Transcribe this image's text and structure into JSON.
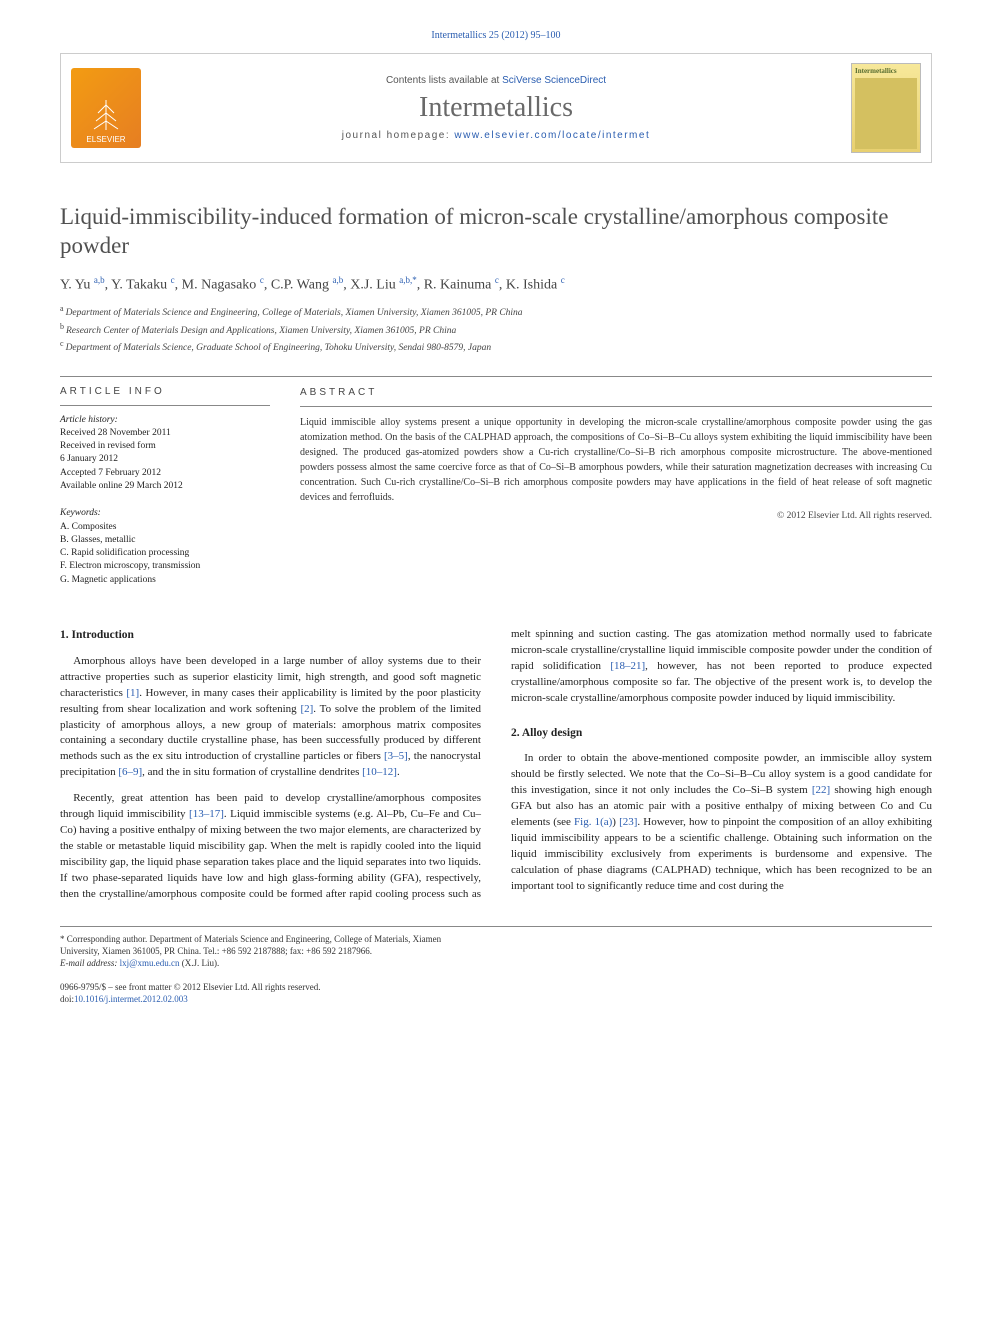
{
  "header": {
    "reference": "Intermetallics 25 (2012) 95–100",
    "contents_prefix": "Contents lists available at ",
    "contents_link": "SciVerse ScienceDirect",
    "journal_title": "Intermetallics",
    "homepage_prefix": "journal homepage: ",
    "homepage_url": "www.elsevier.com/locate/intermet",
    "publisher_logo": "ELSEVIER",
    "cover_label": "Intermetallics"
  },
  "article": {
    "title": "Liquid-immiscibility-induced formation of micron-scale crystalline/amorphous composite powder",
    "authors_html": "Y. Yu <sup>a,b</sup>, Y. Takaku <sup>c</sup>, M. Nagasako <sup>c</sup>, C.P. Wang <sup>a,b</sup>, X.J. Liu <sup>a,b,*</sup>, R. Kainuma <sup>c</sup>, K. Ishida <sup>c</sup>",
    "affiliations": [
      {
        "sup": "a",
        "text": "Department of Materials Science and Engineering, College of Materials, Xiamen University, Xiamen 361005, PR China"
      },
      {
        "sup": "b",
        "text": "Research Center of Materials Design and Applications, Xiamen University, Xiamen 361005, PR China"
      },
      {
        "sup": "c",
        "text": "Department of Materials Science, Graduate School of Engineering, Tohoku University, Sendai 980-8579, Japan"
      }
    ]
  },
  "meta": {
    "info_head": "ARTICLE INFO",
    "abstract_head": "ABSTRACT",
    "history_label": "Article history:",
    "history": [
      "Received 28 November 2011",
      "Received in revised form",
      "6 January 2012",
      "Accepted 7 February 2012",
      "Available online 29 March 2012"
    ],
    "keywords_label": "Keywords:",
    "keywords": [
      "A. Composites",
      "B. Glasses, metallic",
      "C. Rapid solidification processing",
      "F. Electron microscopy, transmission",
      "G. Magnetic applications"
    ],
    "abstract": "Liquid immiscible alloy systems present a unique opportunity in developing the micron-scale crystalline/amorphous composite powder using the gas atomization method. On the basis of the CALPHAD approach, the compositions of Co–Si–B–Cu alloys system exhibiting the liquid immiscibility have been designed. The produced gas-atomized powders show a Cu-rich crystalline/Co–Si–B rich amorphous composite microstructure. The above-mentioned powders possess almost the same coercive force as that of Co–Si–B amorphous powders, while their saturation magnetization decreases with increasing Cu concentration. Such Cu-rich crystalline/Co–Si–B rich amorphous composite powders may have applications in the field of heat release of soft magnetic devices and ferrofluids.",
    "copyright": "© 2012 Elsevier Ltd. All rights reserved."
  },
  "body": {
    "sect1_title": "1. Introduction",
    "sect1_p1": "Amorphous alloys have been developed in a large number of alloy systems due to their attractive properties such as superior elasticity limit, high strength, and good soft magnetic characteristics [1]. However, in many cases their applicability is limited by the poor plasticity resulting from shear localization and work softening [2]. To solve the problem of the limited plasticity of amorphous alloys, a new group of materials: amorphous matrix composites containing a secondary ductile crystalline phase, has been successfully produced by different methods such as the ex situ introduction of crystalline particles or fibers [3–5], the nanocrystal precipitation [6–9], and the in situ formation of crystalline dendrites [10–12].",
    "sect1_p2": "Recently, great attention has been paid to develop crystalline/amorphous composites through liquid immiscibility [13–17]. Liquid immiscible systems (e.g. Al–Pb, Cu–Fe and Cu–Co) having a positive enthalpy of mixing between the two major elements, are characterized by the stable or metastable liquid miscibility gap. When the melt is rapidly cooled into the liquid miscibility gap, the liquid phase separation takes place and the liquid separates into two liquids. If two phase-separated liquids have low and high glass-forming ability (GFA), respectively, then the crystalline/amorphous composite could be formed after rapid cooling process such as melt spinning and suction casting. The gas atomization method normally used to fabricate micron-scale crystalline/crystalline liquid immiscible composite powder under the condition of rapid solidification [18–21], however, has not been reported to produce expected crystalline/amorphous composite so far. The objective of the present work is, to develop the micron-scale crystalline/amorphous composite powder induced by liquid immiscibility.",
    "sect2_title": "2. Alloy design",
    "sect2_p1": "In order to obtain the above-mentioned composite powder, an immiscible alloy system should be firstly selected. We note that the Co–Si–B–Cu alloy system is a good candidate for this investigation, since it not only includes the Co–Si–B system [22] showing high enough GFA but also has an atomic pair with a positive enthalpy of mixing between Co and Cu elements (see Fig. 1(a)) [23]. However, how to pinpoint the composition of an alloy exhibiting liquid immiscibility appears to be a scientific challenge. Obtaining such information on the liquid immiscibility exclusively from experiments is burdensome and expensive. The calculation of phase diagrams (CALPHAD) technique, which has been recognized to be an important tool to significantly reduce time and cost during the"
  },
  "footer": {
    "corr": "* Corresponding author. Department of Materials Science and Engineering, College of Materials, Xiamen University, Xiamen 361005, PR China. Tel.: +86 592 2187888; fax: +86 592 2187966.",
    "email_label": "E-mail address: ",
    "email": "lxj@xmu.edu.cn",
    "email_who": " (X.J. Liu).",
    "perma1": "0966-9795/$ – see front matter © 2012 Elsevier Ltd. All rights reserved.",
    "perma2_prefix": "doi:",
    "perma2": "10.1016/j.intermet.2012.02.003"
  },
  "colors": {
    "link": "#2a5db0",
    "rule": "#888888",
    "title_gray": "#505050",
    "logo_bg1": "#f39c12",
    "logo_bg2": "#e67e22",
    "cover_bg1": "#f7e89a",
    "cover_bg2": "#e8d070"
  }
}
